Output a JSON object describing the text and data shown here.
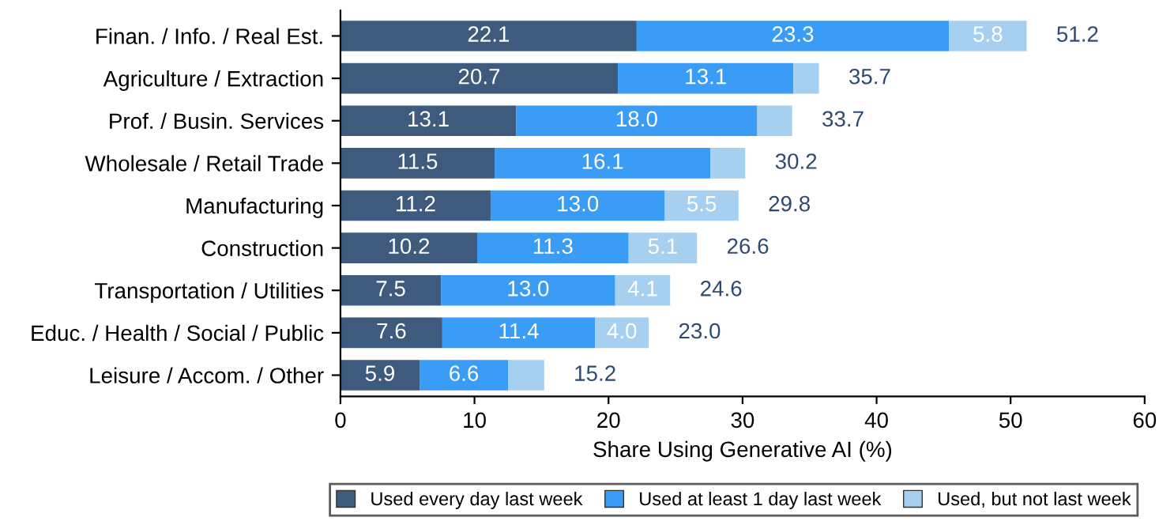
{
  "chart_data": {
    "type": "bar",
    "orientation": "horizontal",
    "stacked": true,
    "xlabel": "Share Using Generative AI (%)",
    "categories": [
      "Finan. / Info. / Real Est.",
      "Agriculture / Extraction",
      "Prof. / Busin. Services",
      "Wholesale / Retail Trade",
      "Manufacturing",
      "Construction",
      "Transportation / Utilities",
      "Educ. / Health / Social / Public",
      "Leisure / Accom. / Other"
    ],
    "series": [
      {
        "name": "Used every day last week",
        "color": "#3e5b7e",
        "values": [
          22.1,
          20.7,
          13.1,
          11.5,
          11.2,
          10.2,
          7.5,
          7.6,
          5.9
        ],
        "value_labels": [
          "22.1",
          "20.7",
          "13.1",
          "11.5",
          "11.2",
          "10.2",
          "7.5",
          "7.6",
          "5.9"
        ]
      },
      {
        "name": "Used at least 1 day last week",
        "color": "#3a9cf5",
        "values": [
          23.3,
          13.1,
          18.0,
          16.1,
          13.0,
          11.3,
          13.0,
          11.4,
          6.6
        ],
        "value_labels": [
          "23.3",
          "13.1",
          "18.0",
          "16.1",
          "13.0",
          "11.3",
          "13.0",
          "11.4",
          "6.6"
        ]
      },
      {
        "name": "Used, but not last week",
        "color": "#a7d0f0",
        "values": [
          5.8,
          1.9,
          2.6,
          2.6,
          5.5,
          5.1,
          4.1,
          4.0,
          2.7
        ],
        "value_labels": [
          "5.8",
          null,
          null,
          null,
          "5.5",
          "5.1",
          "4.1",
          "4.0",
          null
        ]
      }
    ],
    "totals": [
      "51.2",
      "35.7",
      "33.7",
      "30.2",
      "29.8",
      "26.6",
      "24.6",
      "23.0",
      "15.2"
    ],
    "xlim": [
      0,
      60
    ],
    "xticks": [
      0,
      10,
      20,
      30,
      40,
      50,
      60
    ],
    "grid": false,
    "legend": "bottom"
  }
}
